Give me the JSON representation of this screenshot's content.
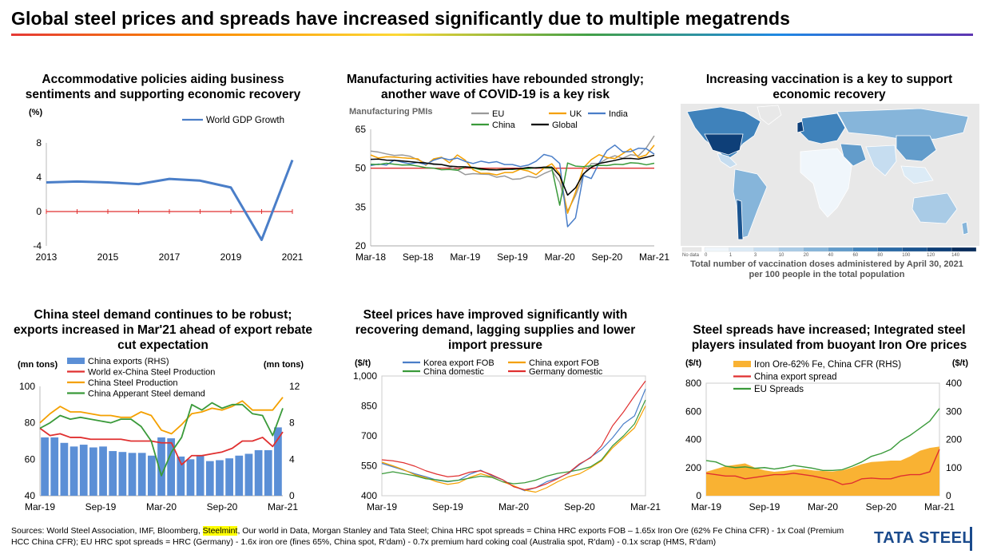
{
  "page": {
    "title": "Global steel prices and spreads have increased significantly due to multiple megatrends",
    "footnote_a": "Sources: World Steel Association, IMF, Bloomberg, ",
    "footnote_hl": "Steelmint",
    "footnote_b": ", Our world in Data, Morgan Stanley and Tata Steel; China HRC spot spreads = China HRC exports FOB – 1.65x Iron Ore (62% Fe China CFR) - 1x Coal (Premium HCC China CFR); EU HRC spot spreads = HRC (Germany) - 1.6x iron ore (fines 65%, China spot, R'dam) - 0.7x premium hard coking coal (Australia spot, R'dam) - 0.1x scrap (HMS, R'dam)",
    "brand": "TATA STEEL",
    "rule_colors": [
      "#e53935",
      "#fb8c00",
      "#fdd835",
      "#43a047",
      "#1e88e5",
      "#5e35b1"
    ]
  },
  "panels": {
    "gdp_title": "Accommodative policies aiding business sentiments and supporting economic recovery",
    "pmi_title": "Manufacturing activities have rebounded strongly; another wave of COVID-19 is a key risk",
    "vacc_title": "Increasing vaccination is a key to support economic recovery",
    "china_title": "China steel demand continues to be robust; exports increased in Mar'21 ahead of export rebate cut expectation",
    "prices_title": "Steel prices have improved significantly with recovering demand, lagging supplies and lower import pressure",
    "spreads_title": "Steel spreads have increased; Integrated steel players insulated from buoyant Iron Ore prices"
  },
  "chart_data": [
    {
      "id": "gdp",
      "type": "line",
      "ylabel": "(%)",
      "ylim": [
        -4,
        8
      ],
      "yticks": [
        -4,
        0,
        4,
        8
      ],
      "xticks": [
        "2013",
        "2015",
        "2017",
        "2019",
        "2021"
      ],
      "x": [
        2013,
        2014,
        2015,
        2016,
        2017,
        2018,
        2019,
        2020,
        2021
      ],
      "series": [
        {
          "name": "World GDP Growth",
          "color": "#4a7ec8",
          "values": [
            3.4,
            3.5,
            3.4,
            3.2,
            3.8,
            3.6,
            2.8,
            -3.3,
            6.0
          ]
        }
      ],
      "reference_line": {
        "y": 0,
        "color": "#e03030"
      },
      "legend": "top-right"
    },
    {
      "id": "pmi",
      "type": "line",
      "ylabel": "Manufacturing PMIs",
      "ylim": [
        20,
        65
      ],
      "yticks": [
        20,
        35,
        50,
        65
      ],
      "xticks": [
        "Mar-18",
        "Sep-18",
        "Mar-19",
        "Sep-19",
        "Mar-20",
        "Sep-20",
        "Mar-21"
      ],
      "months": 37,
      "reference_line": {
        "y": 50,
        "color": "#e03030"
      },
      "legend": "top",
      "series": [
        {
          "name": "EU",
          "color": "#999999",
          "values": [
            56.6,
            56.2,
            55.5,
            54.9,
            55.1,
            54.6,
            53.2,
            52.0,
            51.8,
            51.4,
            50.5,
            49.3,
            47.5,
            47.9,
            47.7,
            47.6,
            46.5,
            47.0,
            45.7,
            45.9,
            46.9,
            46.3,
            47.9,
            49.2,
            44.5,
            33.4,
            39.4,
            47.4,
            51.8,
            51.8,
            53.7,
            54.8,
            53.8,
            55.2,
            54.8,
            57.9,
            62.5
          ]
        },
        {
          "name": "UK",
          "color": "#f4a000",
          "values": [
            55.1,
            53.9,
            54.4,
            54.3,
            54.0,
            53.8,
            53.6,
            51.1,
            53.6,
            54.2,
            52.1,
            55.1,
            53.1,
            49.4,
            48.0,
            48.0,
            47.4,
            48.3,
            48.3,
            49.6,
            48.9,
            47.5,
            50.0,
            51.7,
            47.8,
            32.6,
            40.7,
            50.1,
            53.3,
            55.2,
            54.1,
            53.7,
            55.6,
            57.5,
            54.1,
            55.1,
            58.9
          ]
        },
        {
          "name": "India",
          "color": "#4a7ec8",
          "values": [
            51.0,
            51.6,
            51.2,
            53.1,
            52.3,
            51.7,
            52.2,
            51.4,
            53.1,
            54.0,
            53.2,
            53.9,
            52.6,
            51.8,
            52.7,
            52.1,
            52.5,
            51.4,
            51.4,
            50.6,
            51.2,
            52.7,
            55.3,
            54.5,
            51.8,
            27.4,
            30.8,
            47.2,
            46.0,
            52.0,
            56.8,
            58.9,
            56.3,
            56.4,
            57.7,
            57.5,
            55.4
          ]
        },
        {
          "name": "China",
          "color": "#3a9a3a",
          "values": [
            51.5,
            51.4,
            51.9,
            51.5,
            51.2,
            51.3,
            50.8,
            50.2,
            50.0,
            49.4,
            49.5,
            49.2,
            50.5,
            50.1,
            49.4,
            49.5,
            49.4,
            49.7,
            49.5,
            49.8,
            49.8,
            50.2,
            50.2,
            50.0,
            35.7,
            52.0,
            50.8,
            50.6,
            50.9,
            51.1,
            51.0,
            51.5,
            51.4,
            52.1,
            51.9,
            51.3,
            51.9
          ]
        },
        {
          "name": "Global",
          "color": "#000000",
          "values": [
            53.4,
            53.5,
            53.1,
            53.0,
            52.8,
            52.5,
            52.2,
            52.0,
            51.5,
            51.4,
            50.8,
            50.6,
            50.5,
            50.3,
            49.8,
            49.4,
            49.3,
            49.5,
            49.7,
            49.8,
            50.3,
            50.1,
            50.4,
            50.4,
            47.1,
            39.6,
            42.4,
            47.8,
            50.3,
            51.8,
            52.4,
            53.0,
            53.7,
            53.8,
            53.5,
            54.2,
            55.0
          ]
        }
      ]
    },
    {
      "id": "vaccination_map",
      "type": "heatmap",
      "legend_title": "Total number of vaccination doses administered by April 30, 2021 per 100 people in the total population",
      "scale_labels": [
        "No data",
        "0",
        "1",
        "3",
        "10",
        "20",
        "40",
        "60",
        "80",
        "100",
        "120",
        "140"
      ],
      "scale_colors": [
        "#e8e8e8",
        "#f0f6fb",
        "#dcebf6",
        "#c6ddf0",
        "#a9cbe6",
        "#86b5da",
        "#629ccb",
        "#3f82bb",
        "#2a6aa6",
        "#1a5490",
        "#0e3f78",
        "#082c5c"
      ]
    },
    {
      "id": "china",
      "type": "bar",
      "ylabel": "(mn tons)",
      "ylabel_right": "(mn tons)",
      "ylim": [
        40,
        100
      ],
      "ylim_right": [
        0,
        12
      ],
      "yticks": [
        40,
        60,
        80,
        100
      ],
      "yticks_right": [
        0,
        4,
        8,
        12
      ],
      "xticks": [
        "Mar-19",
        "Sep-19",
        "Mar-20",
        "Sep-20",
        "Mar-21"
      ],
      "months": 25,
      "legend": "top",
      "series": [
        {
          "name": "China exports (RHS)",
          "kind": "bar",
          "axis": "right",
          "color": "#5b8fd6",
          "values": [
            6.4,
            6.4,
            5.8,
            5.4,
            5.6,
            5.3,
            5.4,
            4.9,
            4.8,
            4.7,
            4.7,
            4.4,
            6.4,
            6.3,
            4.3,
            4.0,
            4.4,
            3.8,
            3.9,
            4.1,
            4.4,
            4.6,
            5.0,
            5.0,
            7.5
          ]
        },
        {
          "name": "World ex-China Steel Production",
          "kind": "line",
          "axis": "left",
          "color": "#e03030",
          "values": [
            77,
            73,
            74,
            72,
            72,
            71,
            71,
            71,
            71,
            70,
            70,
            70,
            69,
            69,
            57,
            62,
            62,
            63,
            64,
            66,
            70,
            70,
            72,
            67,
            75
          ]
        },
        {
          "name": "China Steel Production",
          "kind": "line",
          "axis": "left",
          "color": "#f4a000",
          "values": [
            80,
            85,
            89,
            86,
            86,
            85,
            84,
            84,
            83,
            83,
            86,
            84,
            76,
            74,
            79,
            85,
            86,
            88,
            87,
            89,
            92,
            87,
            87,
            87,
            94
          ]
        },
        {
          "name": "China Apperant Steel demand",
          "kind": "line",
          "axis": "left",
          "color": "#3a9a3a",
          "values": [
            77,
            80,
            84,
            82,
            83,
            82,
            81,
            80,
            82,
            82,
            78,
            70,
            51,
            64,
            72,
            90,
            87,
            91,
            88,
            90,
            90,
            85,
            84,
            73,
            88
          ]
        }
      ]
    },
    {
      "id": "prices",
      "type": "line",
      "ylabel": "($/t)",
      "ylim": [
        400,
        1000
      ],
      "yticks": [
        400,
        550,
        700,
        850,
        1000
      ],
      "ytick_labels": [
        "400",
        "550",
        "700",
        "850",
        "1,000"
      ],
      "xticks": [
        "Mar-19",
        "Sep-19",
        "Mar-20",
        "Sep-20",
        "Mar-21"
      ],
      "months": 25,
      "legend": "top",
      "series": [
        {
          "name": "Korea export FOB",
          "color": "#4a7ec8",
          "values": [
            562,
            545,
            528,
            510,
            495,
            478,
            470,
            478,
            508,
            528,
            500,
            480,
            448,
            425,
            440,
            470,
            488,
            512,
            556,
            593,
            632,
            690,
            760,
            800,
            935
          ]
        },
        {
          "name": "China export FOB",
          "color": "#f4a000",
          "values": [
            568,
            550,
            530,
            505,
            490,
            470,
            457,
            465,
            492,
            510,
            495,
            470,
            450,
            428,
            418,
            440,
            470,
            495,
            510,
            540,
            575,
            640,
            690,
            740,
            850
          ]
        },
        {
          "name": "China domestic",
          "color": "#3a9a3a",
          "values": [
            510,
            520,
            510,
            500,
            485,
            480,
            472,
            478,
            488,
            498,
            492,
            470,
            460,
            465,
            478,
            498,
            512,
            520,
            530,
            545,
            580,
            650,
            700,
            760,
            880
          ]
        },
        {
          "name": "Germany domestic",
          "color": "#e03030",
          "values": [
            580,
            575,
            565,
            548,
            525,
            508,
            495,
            500,
            518,
            525,
            505,
            480,
            445,
            430,
            440,
            460,
            485,
            515,
            560,
            590,
            650,
            750,
            820,
            900,
            975
          ]
        }
      ]
    },
    {
      "id": "spreads",
      "type": "area",
      "ylabel": "($/t)",
      "ylabel_right": "($/t)",
      "ylim": [
        0,
        800
      ],
      "ylim_right": [
        0,
        400
      ],
      "yticks": [
        0,
        200,
        400,
        600,
        800
      ],
      "yticks_right": [
        0,
        100,
        200,
        300,
        400
      ],
      "xticks": [
        "Mar-19",
        "Sep-19",
        "Mar-20",
        "Sep-20",
        "Mar-21"
      ],
      "months": 25,
      "legend": "top",
      "series": [
        {
          "name": "Iron Ore-62% Fe, China CFR (RHS)",
          "kind": "area",
          "axis": "right",
          "color": "#f9b233",
          "values": [
            85,
            95,
            105,
            110,
            115,
            100,
            90,
            85,
            88,
            92,
            95,
            90,
            88,
            86,
            90,
            100,
            112,
            120,
            122,
            125,
            125,
            140,
            160,
            170,
            175
          ]
        },
        {
          "name": "China export spread",
          "kind": "line",
          "axis": "left",
          "color": "#e03030",
          "values": [
            160,
            150,
            140,
            140,
            120,
            130,
            140,
            150,
            150,
            160,
            150,
            140,
            125,
            110,
            80,
            90,
            120,
            125,
            120,
            120,
            140,
            150,
            150,
            170,
            330
          ]
        },
        {
          "name": "EU Spreads",
          "kind": "line",
          "axis": "left",
          "color": "#3a9a3a",
          "values": [
            250,
            240,
            210,
            200,
            205,
            195,
            200,
            190,
            200,
            215,
            205,
            195,
            180,
            180,
            185,
            210,
            240,
            280,
            300,
            330,
            390,
            430,
            480,
            530,
            620
          ]
        }
      ]
    }
  ]
}
